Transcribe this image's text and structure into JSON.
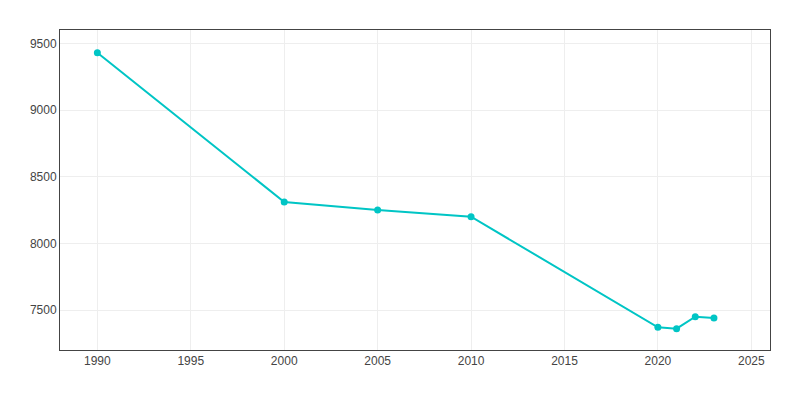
{
  "chart_data": {
    "type": "line",
    "x": [
      1990,
      2000,
      2005,
      2010,
      2020,
      2021,
      2022,
      2023
    ],
    "values": [
      9430,
      8310,
      8250,
      8200,
      7370,
      7360,
      7450,
      7440
    ],
    "color": "#00C5C5",
    "marker": "circle",
    "xlim": [
      1988,
      2026
    ],
    "ylim": [
      7200,
      9600
    ],
    "xticks": [
      1990,
      1995,
      2000,
      2005,
      2010,
      2015,
      2020,
      2025
    ],
    "yticks": [
      7500,
      8000,
      8500,
      9000,
      9500
    ],
    "grid": true
  }
}
